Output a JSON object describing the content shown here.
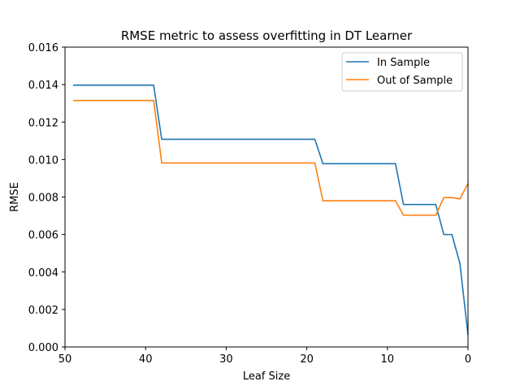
{
  "chart_data": {
    "type": "line",
    "title": "RMSE metric to assess overfitting in DT Learner",
    "xlabel": "Leaf Size",
    "ylabel": "RMSE",
    "xlim": [
      50,
      0
    ],
    "ylim": [
      0.0,
      0.016
    ],
    "x_inverted": true,
    "grid": false,
    "legend_position": "top-right",
    "xticks": [
      50,
      40,
      30,
      20,
      10,
      0
    ],
    "xtick_labels": [
      "50",
      "40",
      "30",
      "20",
      "10",
      "0"
    ],
    "yticks": [
      0.0,
      0.002,
      0.004,
      0.006,
      0.008,
      0.01,
      0.012,
      0.014,
      0.016
    ],
    "ytick_labels": [
      "0.000",
      "0.002",
      "0.004",
      "0.006",
      "0.008",
      "0.010",
      "0.012",
      "0.014",
      "0.016"
    ],
    "series": [
      {
        "name": "In Sample",
        "color": "#1f77b4",
        "points": [
          [
            49,
            0.01397
          ],
          [
            39,
            0.01397
          ],
          [
            38,
            0.01108
          ],
          [
            19,
            0.01108
          ],
          [
            18,
            0.00978
          ],
          [
            9,
            0.00978
          ],
          [
            8,
            0.0076
          ],
          [
            4,
            0.0076
          ],
          [
            3,
            0.006
          ],
          [
            2,
            0.006
          ],
          [
            1,
            0.00445
          ],
          [
            0,
            0.00065
          ]
        ]
      },
      {
        "name": "Out of Sample",
        "color": "#ff7f0e",
        "points": [
          [
            49,
            0.01315
          ],
          [
            39,
            0.01315
          ],
          [
            38,
            0.00982
          ],
          [
            19,
            0.00982
          ],
          [
            18,
            0.0078
          ],
          [
            9,
            0.0078
          ],
          [
            8,
            0.00703
          ],
          [
            4,
            0.00703
          ],
          [
            3,
            0.00797
          ],
          [
            2,
            0.00797
          ],
          [
            1,
            0.0079
          ],
          [
            0,
            0.00872
          ]
        ]
      }
    ]
  }
}
